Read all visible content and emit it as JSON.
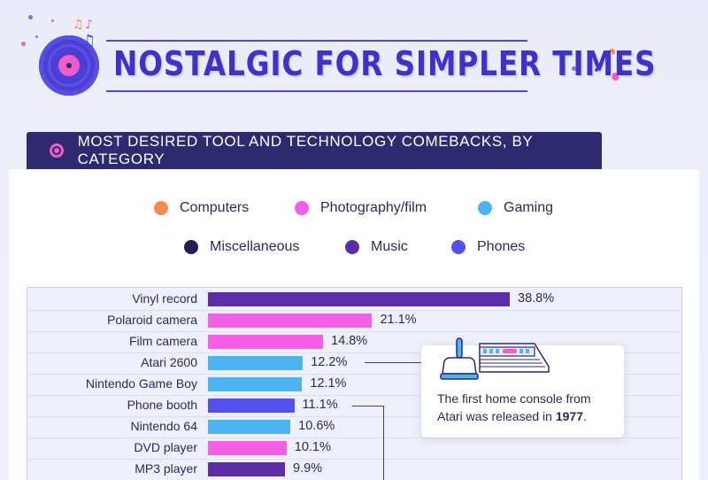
{
  "header": {
    "title": "NOSTALGIC FOR SIMPLER TIMES"
  },
  "subtitle": "MOST DESIRED TOOL AND TECHNOLOGY COMEBACKS, BY CATEGORY",
  "colors": {
    "Computers": "#f78a52",
    "Photography/film": "#f65ee8",
    "Gaming": "#4cb4f3",
    "Miscellaneous": "#232059",
    "Music": "#5b2ea6",
    "Phones": "#5250ee"
  },
  "legend": [
    {
      "label": "Computers",
      "color": "#f78a52"
    },
    {
      "label": "Photography/film",
      "color": "#f65ee8"
    },
    {
      "label": "Gaming",
      "color": "#4cb4f3"
    },
    {
      "label": "Miscellaneous",
      "color": "#232059"
    },
    {
      "label": "Music",
      "color": "#5b2ea6"
    },
    {
      "label": "Phones",
      "color": "#5250ee"
    }
  ],
  "chart_data": {
    "type": "bar",
    "orientation": "horizontal",
    "categories": [
      "Vinyl record",
      "Polaroid camera",
      "Film camera",
      "Atari 2600",
      "Nintendo Game Boy",
      "Phone booth",
      "Nintendo 64",
      "DVD player",
      "MP3 player"
    ],
    "values": [
      38.8,
      21.1,
      14.8,
      12.2,
      12.1,
      11.1,
      10.6,
      10.1,
      9.9
    ],
    "value_labels": [
      "38.8%",
      "21.1%",
      "14.8%",
      "12.2%",
      "12.1%",
      "11.1%",
      "10.6%",
      "10.1%",
      "9.9%"
    ],
    "groups": [
      "Music",
      "Photography/film",
      "Photography/film",
      "Gaming",
      "Gaming",
      "Phones",
      "Gaming",
      "Photography/film",
      "Music"
    ],
    "grid": false
  },
  "callout": {
    "text_before": "The first home console from Atari was released in ",
    "year": "1977",
    "text_after": "."
  }
}
